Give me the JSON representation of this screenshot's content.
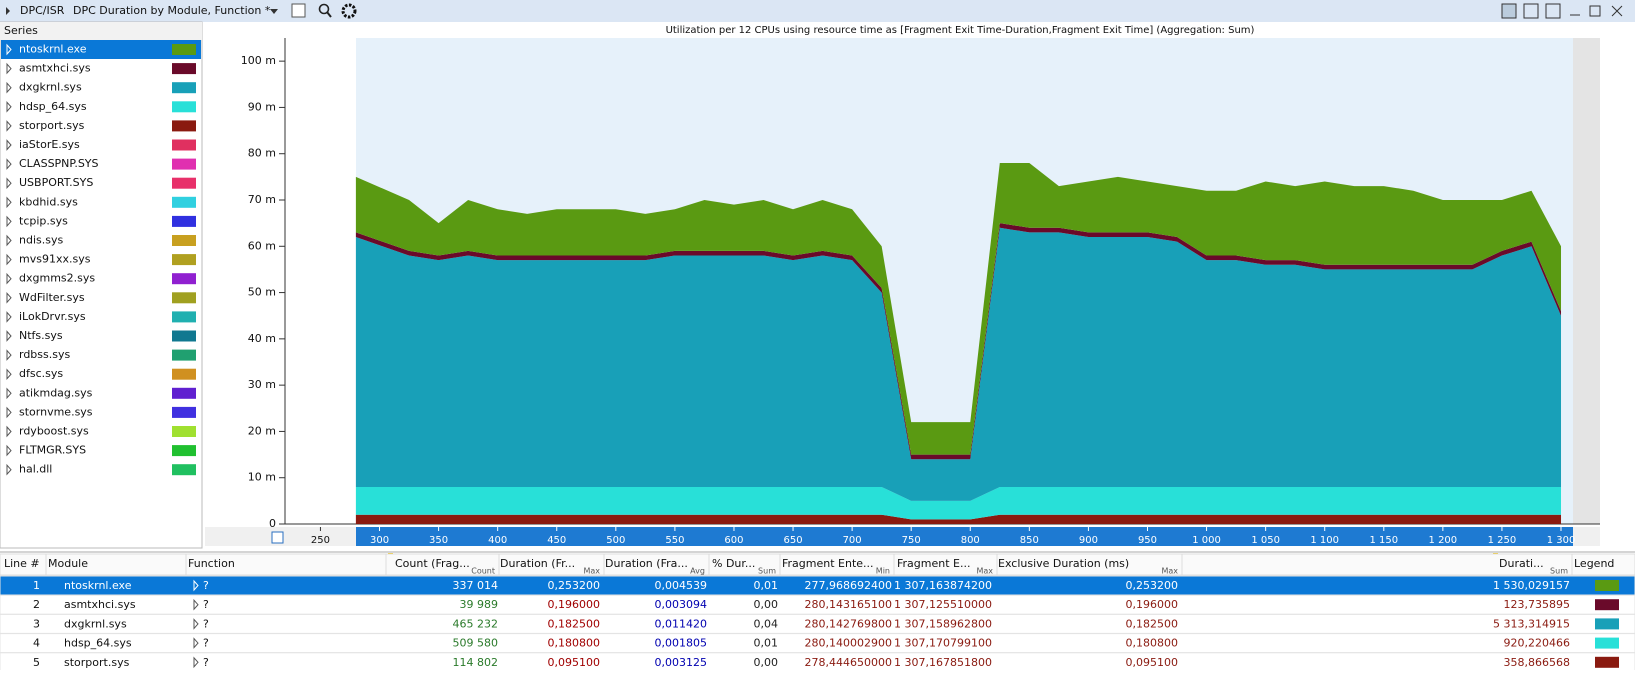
{
  "header": {
    "tab": "DPC/ISR",
    "title": "DPC Duration by Module, Function *"
  },
  "series_header": "Series",
  "chart_data": {
    "type": "area",
    "title": "Utilization per 12 CPUs using resource time as [Fragment Exit Time-Duration,Fragment Exit Time] (Aggregation: Sum)",
    "stacked": true,
    "grid": false,
    "x": [
      280,
      325,
      350,
      375,
      400,
      425,
      450,
      475,
      500,
      525,
      550,
      575,
      600,
      625,
      650,
      675,
      700,
      725,
      750,
      775,
      800,
      825,
      850,
      875,
      900,
      925,
      950,
      975,
      1000,
      1025,
      1050,
      1075,
      1100,
      1125,
      1150,
      1175,
      1200,
      1225,
      1250,
      1275,
      1300
    ],
    "xlim": [
      220,
      1333
    ],
    "xticks": [
      250,
      300,
      350,
      400,
      450,
      500,
      550,
      600,
      650,
      700,
      750,
      800,
      850,
      900,
      950,
      {
        "value": 1000,
        "label": "1 000"
      },
      {
        "value": 1050,
        "label": "1 050"
      },
      {
        "value": 1100,
        "label": "1 100"
      },
      {
        "value": 1150,
        "label": "1 150"
      },
      {
        "value": 1200,
        "label": "1 200"
      },
      {
        "value": 1250,
        "label": "1 250"
      },
      {
        "value": 1300,
        "label": "1 300"
      }
    ],
    "ylim": [
      0,
      105
    ],
    "yticks": [
      0,
      {
        "value": 10,
        "label": "10 m"
      },
      {
        "value": 20,
        "label": "20 m"
      },
      {
        "value": 30,
        "label": "30 m"
      },
      {
        "value": 40,
        "label": "40 m"
      },
      {
        "value": 50,
        "label": "50 m"
      },
      {
        "value": 60,
        "label": "60 m"
      },
      {
        "value": 70,
        "label": "70 m"
      },
      {
        "value": 80,
        "label": "80 m"
      },
      {
        "value": 90,
        "label": "90 m"
      },
      {
        "value": 100,
        "label": "100 m"
      }
    ],
    "series": [
      {
        "name": "ntoskrnl.exe",
        "color": "#5a9a12",
        "values": [
          12,
          11,
          7,
          11,
          10,
          9,
          10,
          10,
          10,
          9,
          9,
          11,
          10,
          11,
          10,
          11,
          10,
          9,
          7,
          7,
          7,
          13,
          14,
          9,
          11,
          12,
          11,
          11,
          14,
          14,
          17,
          16,
          18,
          17,
          17,
          16,
          14,
          14,
          11,
          11,
          14
        ]
      },
      {
        "name": "asmtxhci.sys",
        "color": "#6a0a2a",
        "values": [
          1,
          1,
          1,
          1,
          1,
          1,
          1,
          1,
          1,
          1,
          1,
          1,
          1,
          1,
          1,
          1,
          1,
          1,
          1,
          1,
          1,
          1,
          1,
          1,
          1,
          1,
          1,
          1,
          1,
          1,
          1,
          1,
          1,
          1,
          1,
          1,
          1,
          1,
          1,
          1,
          1
        ]
      },
      {
        "name": "dxgkrnl.sys",
        "color": "#18a0b8",
        "values": [
          54,
          50,
          49,
          50,
          49,
          49,
          49,
          49,
          49,
          49,
          50,
          50,
          50,
          50,
          49,
          50,
          49,
          42,
          9,
          9,
          9,
          56,
          55,
          55,
          54,
          54,
          54,
          53,
          49,
          49,
          48,
          48,
          47,
          47,
          47,
          47,
          47,
          47,
          50,
          52,
          37
        ]
      },
      {
        "name": "hdsp_64.sys",
        "color": "#28e0d8",
        "values": [
          6,
          6,
          6,
          6,
          6,
          6,
          6,
          6,
          6,
          6,
          6,
          6,
          6,
          6,
          6,
          6,
          6,
          6,
          4,
          4,
          4,
          6,
          6,
          6,
          6,
          6,
          6,
          6,
          6,
          6,
          6,
          6,
          6,
          6,
          6,
          6,
          6,
          6,
          6,
          6,
          6
        ]
      },
      {
        "name": "storport.sys",
        "color": "#8a1a10",
        "values": [
          2,
          2,
          2,
          2,
          2,
          2,
          2,
          2,
          2,
          2,
          2,
          2,
          2,
          2,
          2,
          2,
          2,
          2,
          1,
          1,
          1,
          2,
          2,
          2,
          2,
          2,
          2,
          2,
          2,
          2,
          2,
          2,
          2,
          2,
          2,
          2,
          2,
          2,
          2,
          2,
          2
        ]
      },
      {
        "name": "iaStorE.sys",
        "color": "#e03060"
      },
      {
        "name": "CLASSPNP.SYS",
        "color": "#e030b0"
      },
      {
        "name": "USBPORT.SYS",
        "color": "#e8306a"
      },
      {
        "name": "kbdhid.sys",
        "color": "#30d0e0"
      },
      {
        "name": "tcpip.sys",
        "color": "#3030e0"
      },
      {
        "name": "ndis.sys",
        "color": "#c8a020"
      },
      {
        "name": "mvs91xx.sys",
        "color": "#b0a020"
      },
      {
        "name": "dxgmms2.sys",
        "color": "#9020d0"
      },
      {
        "name": "WdFilter.sys",
        "color": "#a0a020"
      },
      {
        "name": "iLokDrvr.sys",
        "color": "#20b0b0"
      },
      {
        "name": "Ntfs.sys",
        "color": "#107890"
      },
      {
        "name": "rdbss.sys",
        "color": "#20a070"
      },
      {
        "name": "dfsc.sys",
        "color": "#d09020"
      },
      {
        "name": "atikmdag.sys",
        "color": "#6020d0"
      },
      {
        "name": "stornvme.sys",
        "color": "#4030e0"
      },
      {
        "name": "rdyboost.sys",
        "color": "#a0e030"
      },
      {
        "name": "FLTMGR.SYS",
        "color": "#20c030"
      },
      {
        "name": "hal.dll",
        "color": "#20c060"
      }
    ]
  },
  "table": {
    "headers": [
      "Line #",
      "Module",
      "Function",
      "Count (Frag...",
      "Duration (Fr...",
      "Duration (Fra...",
      "% Dur...",
      "Fragment Ente...",
      "Fragment E...",
      "Exclusive Duration (ms)",
      "Durati...",
      "Legend"
    ],
    "header_subs": [
      null,
      null,
      null,
      "Count",
      "Max",
      "Avg",
      "Sum",
      "Min",
      "Max",
      "Max",
      "Sum",
      null
    ],
    "rows": [
      [
        "1",
        "ntoskrnl.exe",
        "?",
        "337 014",
        "0,253200",
        "0,004539",
        "0,01",
        "277,968692400",
        "1 307,163874200",
        "0,253200",
        "1 530,029157"
      ],
      [
        "2",
        "asmtxhci.sys",
        "?",
        "39 989",
        "0,196000",
        "0,003094",
        "0,00",
        "280,143165100",
        "1 307,125510000",
        "0,196000",
        "123,735895"
      ],
      [
        "3",
        "dxgkrnl.sys",
        "?",
        "465 232",
        "0,182500",
        "0,011420",
        "0,04",
        "280,142769800",
        "1 307,158962800",
        "0,182500",
        "5 313,314915"
      ],
      [
        "4",
        "hdsp_64.sys",
        "?",
        "509 580",
        "0,180800",
        "0,001805",
        "0,01",
        "280,140002900",
        "1 307,170799100",
        "0,180800",
        "920,220466"
      ],
      [
        "5",
        "storport.sys",
        "?",
        "114 802",
        "0,095100",
        "0,003125",
        "0,00",
        "278,444650000",
        "1 307,167851800",
        "0,095100",
        "358,866568"
      ]
    ],
    "legend_colors": [
      "#5a9a12",
      "#6a0a2a",
      "#18a0b8",
      "#28e0d8",
      "#8a1a10"
    ],
    "selected_row": 0
  }
}
